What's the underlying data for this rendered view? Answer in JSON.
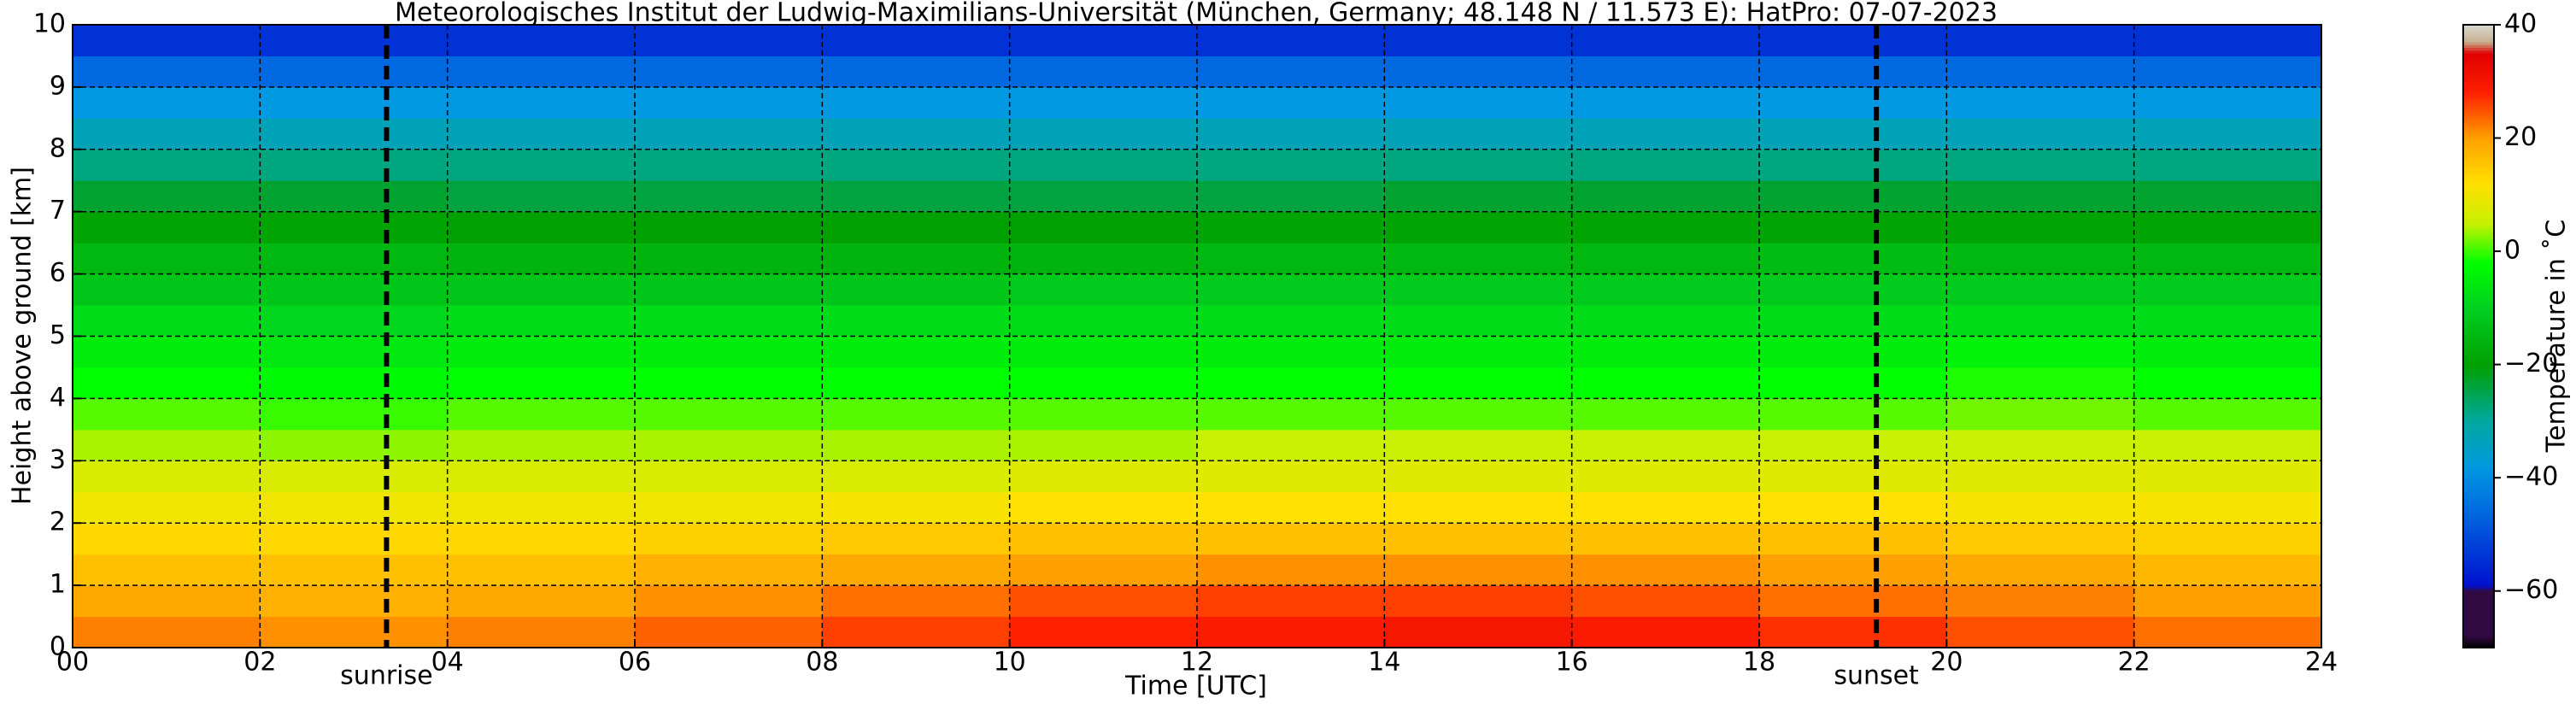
{
  "chart_data": {
    "type": "heatmap",
    "title": "Meteorologisches Institut der Ludwig-Maximilians-Universität (München, Germany; 48.148 N / 11.573 E):    HatPro: 07-07-2023",
    "x_label": "Time [UTC]",
    "y_label": "Height above ground [km]",
    "colorbar_label": "Temperature in ˚C",
    "x": [
      1,
      3,
      5,
      7,
      9,
      11,
      13,
      15,
      17,
      19,
      21,
      23
    ],
    "y": [
      0.25,
      0.75,
      1.25,
      1.75,
      2.25,
      2.75,
      3.25,
      3.75,
      4.25,
      4.75,
      5.25,
      5.75,
      6.25,
      6.75,
      7.25,
      7.75,
      8.25,
      8.75,
      9.25,
      9.75
    ],
    "values": [
      [
        22,
        21,
        22,
        24,
        26,
        28,
        29,
        30,
        29,
        27,
        25,
        23
      ],
      [
        19,
        18,
        19,
        21,
        23,
        25,
        26,
        26,
        25,
        23,
        22,
        20
      ],
      [
        16,
        16,
        16,
        18,
        19,
        20,
        21,
        21,
        21,
        20,
        19,
        17
      ],
      [
        13,
        13,
        13,
        14,
        15,
        16,
        16,
        16,
        16,
        16,
        15,
        14
      ],
      [
        10,
        10,
        10,
        10,
        11,
        12,
        12,
        12,
        12,
        12,
        11,
        11
      ],
      [
        7,
        7,
        7,
        7,
        7,
        8,
        8,
        8,
        8,
        8,
        8,
        8
      ],
      [
        4,
        3,
        4,
        4,
        4,
        4,
        5,
        5,
        5,
        5,
        5,
        5
      ],
      [
        1,
        0,
        1,
        1,
        1,
        1,
        1,
        1,
        1,
        1,
        2,
        1
      ],
      [
        -2,
        -3,
        -2,
        -2,
        -2,
        -2,
        -2,
        -2,
        -2,
        -2,
        -1,
        -2
      ],
      [
        -5,
        -6,
        -5,
        -5,
        -5,
        -5,
        -5,
        -5,
        -5,
        -5,
        -4,
        -5
      ],
      [
        -8,
        -9,
        -8,
        -8,
        -8,
        -8,
        -8,
        -8,
        -8,
        -8,
        -8,
        -8
      ],
      [
        -12,
        -12,
        -12,
        -12,
        -12,
        -11,
        -11,
        -11,
        -11,
        -11,
        -11,
        -11
      ],
      [
        -15,
        -15,
        -16,
        -16,
        -16,
        -16,
        -15,
        -15,
        -15,
        -14,
        -15,
        -15
      ],
      [
        -19,
        -19,
        -20,
        -20,
        -20,
        -20,
        -19,
        -19,
        -19,
        -19,
        -19,
        -19
      ],
      [
        -23,
        -23,
        -24,
        -24,
        -24,
        -24,
        -24,
        -23,
        -23,
        -23,
        -23,
        -23
      ],
      [
        -28,
        -28,
        -28,
        -28,
        -28,
        -28,
        -28,
        -28,
        -28,
        -28,
        -28,
        -28
      ],
      [
        -33,
        -33,
        -33,
        -33,
        -33,
        -33,
        -33,
        -33,
        -33,
        -33,
        -33,
        -33
      ],
      [
        -38,
        -38,
        -38,
        -38,
        -38,
        -38,
        -38,
        -38,
        -38,
        -38,
        -38,
        -38
      ],
      [
        -46,
        -46,
        -46,
        -46,
        -46,
        -46,
        -46,
        -46,
        -46,
        -46,
        -46,
        -46
      ],
      [
        -54,
        -54,
        -54,
        -54,
        -54,
        -54,
        -54,
        -54,
        -54,
        -54,
        -54,
        -54
      ]
    ],
    "xlim": [
      0,
      24
    ],
    "ylim": [
      0,
      10
    ],
    "clim": [
      -70,
      40
    ],
    "xticks": [
      {
        "value": 0,
        "label": "00"
      },
      {
        "value": 2,
        "label": "02"
      },
      {
        "value": 4,
        "label": "04"
      },
      {
        "value": 6,
        "label": "06"
      },
      {
        "value": 8,
        "label": "08"
      },
      {
        "value": 10,
        "label": "10"
      },
      {
        "value": 12,
        "label": "12"
      },
      {
        "value": 14,
        "label": "14"
      },
      {
        "value": 16,
        "label": "16"
      },
      {
        "value": 18,
        "label": "18"
      },
      {
        "value": 20,
        "label": "20"
      },
      {
        "value": 22,
        "label": "22"
      },
      {
        "value": 24,
        "label": "24"
      }
    ],
    "yticks": [
      0,
      1,
      2,
      3,
      4,
      5,
      6,
      7,
      8,
      9,
      10
    ],
    "cticks": [
      {
        "value": -60,
        "label": "−60"
      },
      {
        "value": -40,
        "label": "−40"
      },
      {
        "value": -20,
        "label": "−20"
      },
      0,
      20,
      40
    ],
    "grid": true,
    "annotations": [
      {
        "text": "sunrise",
        "x": 3.35
      },
      {
        "text": "sunset",
        "x": 19.25
      }
    ],
    "colormap": [
      {
        "value": -70,
        "color": "#000000"
      },
      {
        "value": -68,
        "color": "#300a40"
      },
      {
        "value": -60,
        "color": "#300a40"
      },
      {
        "value": -59,
        "color": "#0010d0"
      },
      {
        "value": -45,
        "color": "#0070e0"
      },
      {
        "value": -38,
        "color": "#0098e0"
      },
      {
        "value": -30,
        "color": "#00a8a0"
      },
      {
        "value": -20,
        "color": "#00a000"
      },
      {
        "value": -10,
        "color": "#00d020"
      },
      {
        "value": -2,
        "color": "#00ff00"
      },
      {
        "value": 5,
        "color": "#c8f000"
      },
      {
        "value": 12,
        "color": "#ffe000"
      },
      {
        "value": 20,
        "color": "#ffa000"
      },
      {
        "value": 28,
        "color": "#ff2000"
      },
      {
        "value": 35,
        "color": "#e00000"
      },
      {
        "value": 37,
        "color": "#c8b090"
      },
      {
        "value": 40,
        "color": "#d8d8d0"
      }
    ]
  }
}
